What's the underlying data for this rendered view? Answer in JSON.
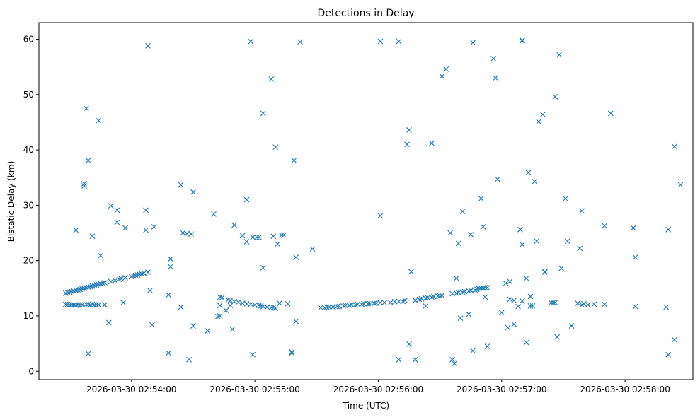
{
  "chart_data": {
    "type": "scatter",
    "title": "Detections in Delay",
    "xlabel": "Time (UTC)",
    "ylabel": "Bistatic Delay (km)",
    "marker": "x",
    "marker_color": "#1f77b4",
    "grid": false,
    "x_range": [
      "2026-03-30 02:53:15",
      "2026-03-30 02:58:33"
    ],
    "ylim": [
      -1.5,
      63
    ],
    "x_ticks": [
      "2026-03-30 02:54:00",
      "2026-03-30 02:55:00",
      "2026-03-30 02:56:00",
      "2026-03-30 02:57:00",
      "2026-03-30 02:58:00"
    ],
    "y_ticks": [
      0,
      10,
      20,
      30,
      40,
      50,
      60
    ],
    "points": [
      [
        "2026-03-30 02:53:28",
        14.1
      ],
      [
        "2026-03-30 02:53:29",
        14.2
      ],
      [
        "2026-03-30 02:53:30",
        14.3
      ],
      [
        "2026-03-30 02:53:31",
        14.4
      ],
      [
        "2026-03-30 02:53:32",
        14.5
      ],
      [
        "2026-03-30 02:53:33",
        14.6
      ],
      [
        "2026-03-30 02:53:34",
        14.7
      ],
      [
        "2026-03-30 02:53:35",
        14.8
      ],
      [
        "2026-03-30 02:53:36",
        14.9
      ],
      [
        "2026-03-30 02:53:37",
        15.0
      ],
      [
        "2026-03-30 02:53:38",
        15.1
      ],
      [
        "2026-03-30 02:53:39",
        15.2
      ],
      [
        "2026-03-30 02:53:40",
        15.3
      ],
      [
        "2026-03-30 02:53:41",
        15.4
      ],
      [
        "2026-03-30 02:53:42",
        15.5
      ],
      [
        "2026-03-30 02:53:43",
        15.6
      ],
      [
        "2026-03-30 02:53:44",
        15.7
      ],
      [
        "2026-03-30 02:53:45",
        15.8
      ],
      [
        "2026-03-30 02:53:46",
        15.9
      ],
      [
        "2026-03-30 02:53:47",
        16.0
      ],
      [
        "2026-03-30 02:53:50",
        16.2
      ],
      [
        "2026-03-30 02:53:52",
        16.4
      ],
      [
        "2026-03-30 02:53:54",
        16.6
      ],
      [
        "2026-03-30 02:53:55",
        16.7
      ],
      [
        "2026-03-30 02:53:57",
        16.9
      ],
      [
        "2026-03-30 02:54:00",
        17.1
      ],
      [
        "2026-03-30 02:54:01",
        17.2
      ],
      [
        "2026-03-30 02:54:02",
        17.3
      ],
      [
        "2026-03-30 02:54:03",
        17.4
      ],
      [
        "2026-03-30 02:54:04",
        17.5
      ],
      [
        "2026-03-30 02:54:05",
        17.6
      ],
      [
        "2026-03-30 02:54:06",
        17.7
      ],
      [
        "2026-03-30 02:54:08",
        17.9
      ],
      [
        "2026-03-30 02:53:28",
        12.1
      ],
      [
        "2026-03-30 02:53:29",
        12.1
      ],
      [
        "2026-03-30 02:53:30",
        12.0
      ],
      [
        "2026-03-30 02:53:31",
        12.0
      ],
      [
        "2026-03-30 02:53:32",
        12.0
      ],
      [
        "2026-03-30 02:53:33",
        11.9
      ],
      [
        "2026-03-30 02:53:34",
        12.0
      ],
      [
        "2026-03-30 02:53:35",
        12.0
      ],
      [
        "2026-03-30 02:53:36",
        12.0
      ],
      [
        "2026-03-30 02:53:38",
        12.1
      ],
      [
        "2026-03-30 02:53:39",
        12.1
      ],
      [
        "2026-03-30 02:53:40",
        12.0
      ],
      [
        "2026-03-30 02:53:41",
        12.1
      ],
      [
        "2026-03-30 02:53:42",
        12.0
      ],
      [
        "2026-03-30 02:53:43",
        12.0
      ],
      [
        "2026-03-30 02:53:44",
        12.0
      ],
      [
        "2026-03-30 02:53:47",
        12.0
      ],
      [
        "2026-03-30 02:53:38",
        47.5
      ],
      [
        "2026-03-30 02:53:44",
        45.3
      ],
      [
        "2026-03-30 02:53:37",
        33.9
      ],
      [
        "2026-03-30 02:53:37",
        33.5
      ],
      [
        "2026-03-30 02:53:39",
        38.1
      ],
      [
        "2026-03-30 02:53:33",
        25.5
      ],
      [
        "2026-03-30 02:53:41",
        24.4
      ],
      [
        "2026-03-30 02:53:45",
        20.9
      ],
      [
        "2026-03-30 02:53:39",
        3.2
      ],
      [
        "2026-03-30 02:53:49",
        8.8
      ],
      [
        "2026-03-30 02:53:50",
        29.9
      ],
      [
        "2026-03-30 02:53:53",
        29.1
      ],
      [
        "2026-03-30 02:53:53",
        26.9
      ],
      [
        "2026-03-30 02:53:57",
        25.9
      ],
      [
        "2026-03-30 02:53:56",
        12.4
      ],
      [
        "2026-03-30 02:54:07",
        29.1
      ],
      [
        "2026-03-30 02:54:07",
        25.5
      ],
      [
        "2026-03-30 02:54:08",
        58.8
      ],
      [
        "2026-03-30 02:54:09",
        14.6
      ],
      [
        "2026-03-30 02:54:11",
        26.1
      ],
      [
        "2026-03-30 02:54:10",
        8.4
      ],
      [
        "2026-03-30 02:54:18",
        13.8
      ],
      [
        "2026-03-30 02:54:18",
        3.3
      ],
      [
        "2026-03-30 02:54:19",
        20.3
      ],
      [
        "2026-03-30 02:54:19",
        18.9
      ],
      [
        "2026-03-30 02:54:24",
        33.7
      ],
      [
        "2026-03-30 02:54:24",
        11.6
      ],
      [
        "2026-03-30 02:54:25",
        25.0
      ],
      [
        "2026-03-30 02:54:27",
        24.9
      ],
      [
        "2026-03-30 02:54:29",
        24.8
      ],
      [
        "2026-03-30 02:54:30",
        32.4
      ],
      [
        "2026-03-30 02:54:28",
        2.1
      ],
      [
        "2026-03-30 02:54:30",
        8.2
      ],
      [
        "2026-03-30 02:54:37",
        7.3
      ],
      [
        "2026-03-30 02:54:40",
        28.4
      ],
      [
        "2026-03-30 02:54:42",
        9.9
      ],
      [
        "2026-03-30 02:54:43",
        10.0
      ],
      [
        "2026-03-30 02:54:43",
        11.9
      ],
      [
        "2026-03-30 02:54:43",
        13.4
      ],
      [
        "2026-03-30 02:54:44",
        13.3
      ],
      [
        "2026-03-30 02:54:47",
        12.9
      ],
      [
        "2026-03-30 02:54:48",
        12.8
      ],
      [
        "2026-03-30 02:54:50",
        12.6
      ],
      [
        "2026-03-30 02:54:52",
        12.5
      ],
      [
        "2026-03-30 02:54:54",
        12.3
      ],
      [
        "2026-03-30 02:54:56",
        12.2
      ],
      [
        "2026-03-30 02:54:58",
        12.1
      ],
      [
        "2026-03-30 02:55:00",
        12.0
      ],
      [
        "2026-03-30 02:55:02",
        11.9
      ],
      [
        "2026-03-30 02:55:03",
        11.8
      ],
      [
        "2026-03-30 02:55:04",
        11.7
      ],
      [
        "2026-03-30 02:55:06",
        11.6
      ],
      [
        "2026-03-30 02:55:08",
        11.5
      ],
      [
        "2026-03-30 02:55:09",
        11.5
      ],
      [
        "2026-03-30 02:55:10",
        11.4
      ],
      [
        "2026-03-30 02:54:46",
        11.0
      ],
      [
        "2026-03-30 02:54:48",
        11.9
      ],
      [
        "2026-03-30 02:54:49",
        7.6
      ],
      [
        "2026-03-30 02:54:50",
        26.4
      ],
      [
        "2026-03-30 02:54:54",
        24.5
      ],
      [
        "2026-03-30 02:54:56",
        23.4
      ],
      [
        "2026-03-30 02:54:56",
        31.0
      ],
      [
        "2026-03-30 02:54:58",
        59.6
      ],
      [
        "2026-03-30 02:54:59",
        3.0
      ],
      [
        "2026-03-30 02:54:59",
        24.2
      ],
      [
        "2026-03-30 02:55:01",
        24.2
      ],
      [
        "2026-03-30 02:55:02",
        24.2
      ],
      [
        "2026-03-30 02:55:04",
        18.7
      ],
      [
        "2026-03-30 02:55:04",
        46.6
      ],
      [
        "2026-03-30 02:55:08",
        52.8
      ],
      [
        "2026-03-30 02:55:09",
        24.4
      ],
      [
        "2026-03-30 02:55:10",
        40.5
      ],
      [
        "2026-03-30 02:55:11",
        23.0
      ],
      [
        "2026-03-30 02:55:12",
        12.3
      ],
      [
        "2026-03-30 02:55:13",
        24.6
      ],
      [
        "2026-03-30 02:55:14",
        24.6
      ],
      [
        "2026-03-30 02:55:16",
        12.2
      ],
      [
        "2026-03-30 02:55:18",
        3.5
      ],
      [
        "2026-03-30 02:55:18",
        3.3
      ],
      [
        "2026-03-30 02:55:19",
        38.1
      ],
      [
        "2026-03-30 02:55:20",
        20.6
      ],
      [
        "2026-03-30 02:55:20",
        9.0
      ],
      [
        "2026-03-30 02:55:22",
        59.5
      ],
      [
        "2026-03-30 02:55:28",
        22.1
      ],
      [
        "2026-03-30 02:55:32",
        11.5
      ],
      [
        "2026-03-30 02:55:34",
        11.5
      ],
      [
        "2026-03-30 02:55:35",
        11.6
      ],
      [
        "2026-03-30 02:55:36",
        11.6
      ],
      [
        "2026-03-30 02:55:38",
        11.6
      ],
      [
        "2026-03-30 02:55:40",
        11.7
      ],
      [
        "2026-03-30 02:55:41",
        11.7
      ],
      [
        "2026-03-30 02:55:43",
        11.8
      ],
      [
        "2026-03-30 02:55:44",
        11.9
      ],
      [
        "2026-03-30 02:55:46",
        11.9
      ],
      [
        "2026-03-30 02:55:47",
        12.0
      ],
      [
        "2026-03-30 02:55:49",
        12.0
      ],
      [
        "2026-03-30 02:55:50",
        12.1
      ],
      [
        "2026-03-30 02:55:52",
        12.1
      ],
      [
        "2026-03-30 02:55:53",
        12.2
      ],
      [
        "2026-03-30 02:55:55",
        12.2
      ],
      [
        "2026-03-30 02:55:56",
        12.2
      ],
      [
        "2026-03-30 02:55:58",
        12.3
      ],
      [
        "2026-03-30 02:55:59",
        12.3
      ],
      [
        "2026-03-30 02:56:01",
        12.4
      ],
      [
        "2026-03-30 02:56:03",
        12.4
      ],
      [
        "2026-03-30 02:56:06",
        12.4
      ],
      [
        "2026-03-30 02:56:08",
        12.6
      ],
      [
        "2026-03-30 02:56:10",
        12.6
      ],
      [
        "2026-03-30 02:56:12",
        12.6
      ],
      [
        "2026-03-30 02:56:13",
        12.8
      ],
      [
        "2026-03-30 02:56:01",
        28.1
      ],
      [
        "2026-03-30 02:56:01",
        59.6
      ],
      [
        "2026-03-30 02:56:10",
        59.6
      ],
      [
        "2026-03-30 02:56:10",
        2.1
      ],
      [
        "2026-03-30 02:56:14",
        41.0
      ],
      [
        "2026-03-30 02:56:15",
        43.6
      ],
      [
        "2026-03-30 02:56:15",
        4.9
      ],
      [
        "2026-03-30 02:56:16",
        18.0
      ],
      [
        "2026-03-30 02:56:18",
        2.1
      ],
      [
        "2026-03-30 02:56:18",
        12.8
      ],
      [
        "2026-03-30 02:56:20",
        13.0
      ],
      [
        "2026-03-30 02:56:21",
        13.1
      ],
      [
        "2026-03-30 02:56:23",
        13.2
      ],
      [
        "2026-03-30 02:56:24",
        13.3
      ],
      [
        "2026-03-30 02:56:26",
        13.4
      ],
      [
        "2026-03-30 02:56:27",
        13.5
      ],
      [
        "2026-03-30 02:56:29",
        13.6
      ],
      [
        "2026-03-30 02:56:30",
        13.6
      ],
      [
        "2026-03-30 02:56:31",
        13.7
      ],
      [
        "2026-03-30 02:56:23",
        11.8
      ],
      [
        "2026-03-30 02:56:26",
        41.2
      ],
      [
        "2026-03-30 02:56:31",
        53.3
      ],
      [
        "2026-03-30 02:56:33",
        54.6
      ],
      [
        "2026-03-30 02:56:35",
        25.0
      ],
      [
        "2026-03-30 02:56:36",
        2.1
      ],
      [
        "2026-03-30 02:56:37",
        1.4
      ],
      [
        "2026-03-30 02:56:38",
        16.8
      ],
      [
        "2026-03-30 02:56:39",
        23.1
      ],
      [
        "2026-03-30 02:56:40",
        9.6
      ],
      [
        "2026-03-30 02:56:41",
        28.9
      ],
      [
        "2026-03-30 02:56:44",
        10.3
      ],
      [
        "2026-03-30 02:56:45",
        24.7
      ],
      [
        "2026-03-30 02:56:46",
        3.7
      ],
      [
        "2026-03-30 02:56:46",
        59.4
      ],
      [
        "2026-03-30 02:56:50",
        31.2
      ],
      [
        "2026-03-30 02:56:51",
        26.1
      ],
      [
        "2026-03-30 02:56:52",
        13.4
      ],
      [
        "2026-03-30 02:56:53",
        4.5
      ],
      [
        "2026-03-30 02:56:56",
        56.5
      ],
      [
        "2026-03-30 02:56:57",
        53.0
      ],
      [
        "2026-03-30 02:56:58",
        34.7
      ],
      [
        "2026-03-30 02:56:36",
        14.0
      ],
      [
        "2026-03-30 02:56:38",
        14.1
      ],
      [
        "2026-03-30 02:56:39",
        14.2
      ],
      [
        "2026-03-30 02:56:41",
        14.3
      ],
      [
        "2026-03-30 02:56:42",
        14.4
      ],
      [
        "2026-03-30 02:56:44",
        14.5
      ],
      [
        "2026-03-30 02:56:45",
        14.6
      ],
      [
        "2026-03-30 02:56:47",
        14.7
      ],
      [
        "2026-03-30 02:56:48",
        14.8
      ],
      [
        "2026-03-30 02:56:49",
        14.9
      ],
      [
        "2026-03-30 02:56:50",
        15.0
      ],
      [
        "2026-03-30 02:56:51",
        15.0
      ],
      [
        "2026-03-30 02:56:52",
        15.1
      ],
      [
        "2026-03-30 02:56:53",
        15.1
      ],
      [
        "2026-03-30 02:57:00",
        10.6
      ],
      [
        "2026-03-30 02:57:02",
        15.9
      ],
      [
        "2026-03-30 02:57:04",
        16.2
      ],
      [
        "2026-03-30 02:57:03",
        7.9
      ],
      [
        "2026-03-30 02:57:04",
        13.0
      ],
      [
        "2026-03-30 02:57:06",
        12.8
      ],
      [
        "2026-03-30 02:57:06",
        8.5
      ],
      [
        "2026-03-30 02:57:08",
        11.7
      ],
      [
        "2026-03-30 02:57:09",
        25.6
      ],
      [
        "2026-03-30 02:57:10",
        59.8
      ],
      [
        "2026-03-30 02:57:10",
        59.7
      ],
      [
        "2026-03-30 02:57:10",
        22.9
      ],
      [
        "2026-03-30 02:57:10",
        12.7
      ],
      [
        "2026-03-30 02:57:12",
        16.8
      ],
      [
        "2026-03-30 02:57:12",
        5.2
      ],
      [
        "2026-03-30 02:57:13",
        35.9
      ],
      [
        "2026-03-30 02:57:14",
        11.8
      ],
      [
        "2026-03-30 02:57:14",
        13.5
      ],
      [
        "2026-03-30 02:57:15",
        11.8
      ],
      [
        "2026-03-30 02:57:16",
        34.3
      ],
      [
        "2026-03-30 02:57:17",
        23.5
      ],
      [
        "2026-03-30 02:57:18",
        45.1
      ],
      [
        "2026-03-30 02:57:20",
        46.4
      ],
      [
        "2026-03-30 02:57:21",
        17.9
      ],
      [
        "2026-03-30 02:57:21",
        18.0
      ],
      [
        "2026-03-30 02:57:24",
        12.4
      ],
      [
        "2026-03-30 02:57:25",
        12.4
      ],
      [
        "2026-03-30 02:57:26",
        12.4
      ],
      [
        "2026-03-30 02:57:26",
        49.6
      ],
      [
        "2026-03-30 02:57:27",
        6.2
      ],
      [
        "2026-03-30 02:57:28",
        57.2
      ],
      [
        "2026-03-30 02:57:29",
        18.6
      ],
      [
        "2026-03-30 02:57:31",
        31.2
      ],
      [
        "2026-03-30 02:57:32",
        23.5
      ],
      [
        "2026-03-30 02:57:34",
        8.2
      ],
      [
        "2026-03-30 02:57:37",
        12.3
      ],
      [
        "2026-03-30 02:57:38",
        22.2
      ],
      [
        "2026-03-30 02:57:39",
        29.0
      ],
      [
        "2026-03-30 02:57:39",
        12.0
      ],
      [
        "2026-03-30 02:57:40",
        12.2
      ],
      [
        "2026-03-30 02:57:42",
        12.0
      ],
      [
        "2026-03-30 02:57:45",
        12.1
      ],
      [
        "2026-03-30 02:57:50",
        26.3
      ],
      [
        "2026-03-30 02:57:50",
        12.1
      ],
      [
        "2026-03-30 02:57:53",
        46.6
      ],
      [
        "2026-03-30 02:58:04",
        25.9
      ],
      [
        "2026-03-30 02:58:05",
        20.6
      ],
      [
        "2026-03-30 02:58:05",
        11.7
      ],
      [
        "2026-03-30 02:58:20",
        11.6
      ],
      [
        "2026-03-30 02:58:21",
        3.0
      ],
      [
        "2026-03-30 02:58:21",
        25.6
      ],
      [
        "2026-03-30 02:58:24",
        40.6
      ],
      [
        "2026-03-30 02:58:24",
        5.7
      ],
      [
        "2026-03-30 02:58:27",
        33.7
      ]
    ]
  }
}
